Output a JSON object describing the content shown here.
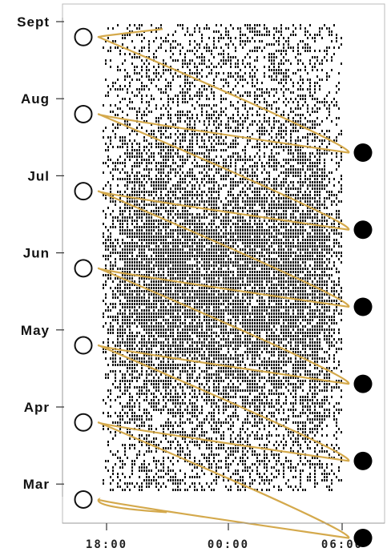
{
  "chart_data": {
    "type": "heatmap",
    "title": "",
    "xlabel": "",
    "ylabel": "",
    "x_ticks": [
      "18:00",
      "00:00",
      "06:00"
    ],
    "x_range_hours": [
      17.0,
      7.0
    ],
    "y_ticks": [
      "Sept",
      "Aug",
      "Jul",
      "Jun",
      "May",
      "Apr",
      "Mar"
    ],
    "moon_phase_markers": {
      "new_moon_months": [
        8.8,
        7.8,
        6.8,
        5.8,
        4.8,
        3.8,
        2.8
      ],
      "full_moon_months": [
        7.3,
        6.3,
        5.3,
        4.3,
        3.3,
        2.3
      ]
    },
    "overlay_curve": {
      "description": "moonlight curve oscillating between dusk and dawn each lunar cycle",
      "color_night": "#d4a94c",
      "color_edge": "#111111"
    },
    "colors": {
      "background": "#ffffff",
      "activity": "#111111",
      "curve": "#d4a94c",
      "frame": "#bbbbbb"
    },
    "grid": false
  }
}
